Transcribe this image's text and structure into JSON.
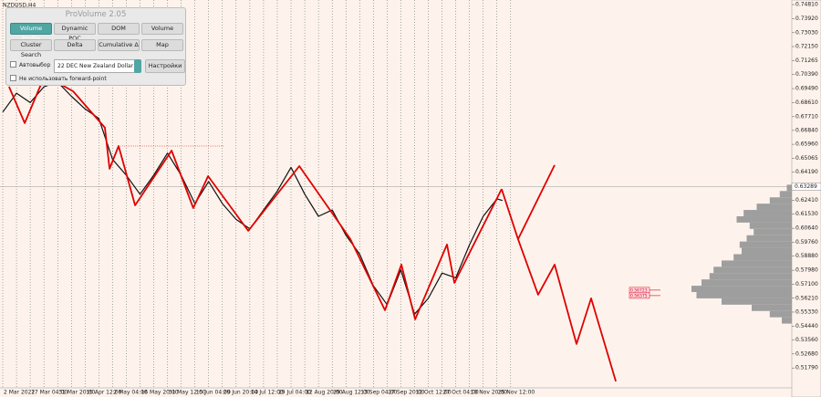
{
  "header": {
    "symbol": "NZDUSD,H4"
  },
  "panel": {
    "title": "ProVolume 2.05",
    "buttons": [
      "Volume Profile",
      "Dynamic POC",
      "DOM",
      "Volume",
      "Cluster Search",
      "Delta",
      "Cumulative Δ",
      "Map"
    ],
    "auto_select": "Автовыбор",
    "contract": "22 DEC New Zealand Dollar",
    "settings": "Настройки",
    "no_forward": "Не использовать forward-point"
  },
  "chart_data": {
    "type": "line",
    "categories": [
      "2 Mar 2022",
      "17 Mar 04:00",
      "31 Mar 20:00",
      "15 Apr 12:00",
      "2 May 04:00",
      "16 May 20:00",
      "31 May 12:00",
      "15 Jun 04:00",
      "29 Jun 20:00",
      "14 Jul 12:00",
      "29 Jul 04:00",
      "12 Aug 20:00",
      "29 Aug 12:00",
      "13 Sep 04:00",
      "27 Sep 20:00",
      "12 Oct 12:00",
      "27 Oct 04:00",
      "10 Nov 20:00",
      "25 Nov 12:00"
    ],
    "xlim": [
      -0.1,
      28.74
    ],
    "ylim": [
      0.5053,
      0.751
    ],
    "yticks": [
      {
        "value": 0.7481,
        "label": "0.74810"
      },
      {
        "value": 0.7392,
        "label": "0.73920"
      },
      {
        "value": 0.7303,
        "label": "0.73030"
      },
      {
        "value": 0.7215,
        "label": "0.72150"
      },
      {
        "value": 0.71265,
        "label": "0.71265"
      },
      {
        "value": 0.7039,
        "label": "0.70390"
      },
      {
        "value": 0.6949,
        "label": "0.69490"
      },
      {
        "value": 0.6861,
        "label": "0.68610"
      },
      {
        "value": 0.6771,
        "label": "0.67710"
      },
      {
        "value": 0.6684,
        "label": "0.66840"
      },
      {
        "value": 0.6596,
        "label": "0.65960"
      },
      {
        "value": 0.65065,
        "label": "0.65065"
      },
      {
        "value": 0.6419,
        "label": "0.64190"
      },
      {
        "value": 0.6241,
        "label": "0.62410"
      },
      {
        "value": 0.6153,
        "label": "0.61530"
      },
      {
        "value": 0.6064,
        "label": "0.60640"
      },
      {
        "value": 0.5976,
        "label": "0.59760"
      },
      {
        "value": 0.5888,
        "label": "0.58880"
      },
      {
        "value": 0.5798,
        "label": "0.57980"
      },
      {
        "value": 0.571,
        "label": "0.57100"
      },
      {
        "value": 0.5621,
        "label": "0.56210"
      },
      {
        "value": 0.5533,
        "label": "0.55330"
      },
      {
        "value": 0.5444,
        "label": "0.54440"
      },
      {
        "value": 0.5356,
        "label": "0.53560"
      },
      {
        "value": 0.5268,
        "label": "0.52680"
      },
      {
        "value": 0.5179,
        "label": "0.51790"
      }
    ],
    "current_price": 0.63289,
    "level_labels": [
      0.56723,
      0.56375
    ],
    "series": [
      {
        "color": "#111111",
        "x": [
          0,
          0.5,
          1,
          1.5,
          2,
          2.5,
          3,
          3.5,
          4,
          4.5,
          5,
          5.5,
          6,
          6.5,
          7,
          7.5,
          8,
          8.5,
          9,
          9.5,
          10,
          10.5,
          11,
          11.5,
          12,
          12.5,
          13,
          13.5,
          14,
          14.5,
          15,
          15.5,
          16,
          16.5,
          17,
          17.5,
          18,
          18.2
        ],
        "values": [
          0.68,
          0.692,
          0.686,
          0.696,
          0.699,
          0.69,
          0.682,
          0.676,
          0.65,
          0.64,
          0.628,
          0.64,
          0.654,
          0.64,
          0.622,
          0.636,
          0.622,
          0.612,
          0.606,
          0.618,
          0.63,
          0.645,
          0.628,
          0.614,
          0.618,
          0.602,
          0.59,
          0.57,
          0.558,
          0.58,
          0.552,
          0.562,
          0.578,
          0.575,
          0.596,
          0.614,
          0.625,
          0.624
        ]
      },
      {
        "color": "#e00000",
        "x": [
          0.23,
          0.8,
          1.4,
          1.96,
          2.56,
          3.72,
          3.89,
          4.22,
          4.82,
          6.15,
          6.94,
          7.48,
          8.94,
          10.8,
          12.66,
          13.92,
          14.52,
          15.02,
          16.18,
          16.45,
          18.17
        ],
        "values": [
          0.6961,
          0.673,
          0.6978,
          0.699,
          0.6932,
          0.6701,
          0.6441,
          0.6585,
          0.6209,
          0.6556,
          0.6192,
          0.6394,
          0.6048,
          0.6458,
          0.5996,
          0.5545,
          0.5834,
          0.5487,
          0.5961,
          0.5718,
          0.6313
        ]
      },
      {
        "color": "#e00000",
        "x": [
          18.17,
          18.77,
          19.5,
          20.1,
          20.9,
          21.43,
          22.33
        ],
        "values": [
          0.6313,
          0.5995,
          0.5643,
          0.5834,
          0.5331,
          0.562,
          0.5094
        ]
      },
      {
        "color": "#e00000",
        "x": [
          18.77,
          20.1
        ],
        "values": [
          0.5995,
          0.6464
        ]
      }
    ],
    "level": {
      "value": 0.6585,
      "x": [
        4.22,
        8.04
      ],
      "color": "#e06060"
    },
    "volume_profile": {
      "color": "#9e9e9e",
      "prices": [
        0.632,
        0.628,
        0.624,
        0.62,
        0.616,
        0.612,
        0.608,
        0.604,
        0.6,
        0.596,
        0.592,
        0.588,
        0.584,
        0.58,
        0.576,
        0.572,
        0.568,
        0.564,
        0.56,
        0.556,
        0.552,
        0.548
      ],
      "volumes": [
        5,
        12,
        22,
        35,
        48,
        55,
        42,
        38,
        45,
        52,
        50,
        58,
        70,
        78,
        82,
        90,
        100,
        95,
        70,
        40,
        22,
        10
      ]
    }
  }
}
